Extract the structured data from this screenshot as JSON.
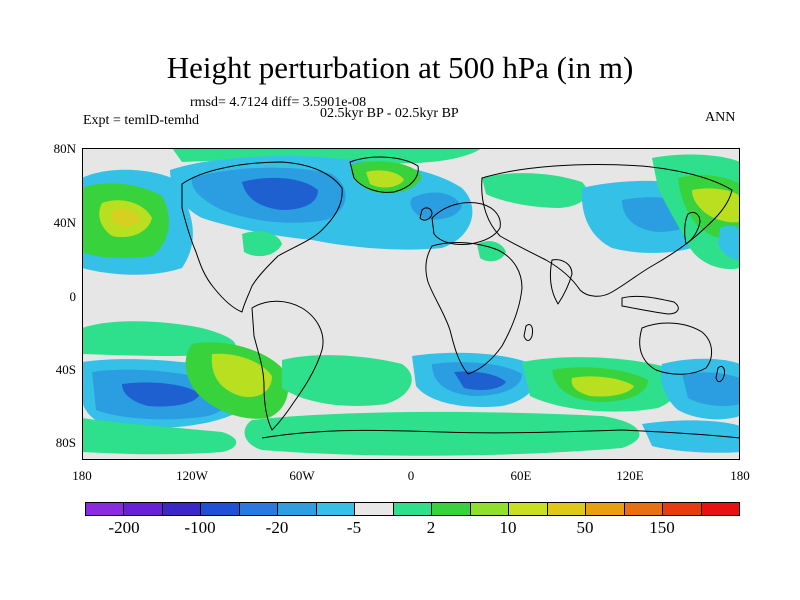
{
  "title": "Height perturbation at 500 hPa (in m)",
  "stats": "rmsd= 4.7124 diff= 3.5901e-08",
  "left_label": "Expt = temlD-temhd",
  "center_label": "02.5kyr BP - 02.5kyr BP",
  "right_label": "ANN",
  "y_ticks": [
    "80N",
    "40N",
    "0",
    "40S",
    "80S"
  ],
  "x_ticks": [
    "180",
    "120W",
    "60W",
    "0",
    "60E",
    "120E",
    "180"
  ],
  "colorbar": {
    "colors": [
      "#8a2be2",
      "#6a1fd8",
      "#3c28c8",
      "#1e50d8",
      "#2a78e0",
      "#2e9ee0",
      "#35c0e8",
      "#e8e8e8",
      "#2ee08c",
      "#38d23c",
      "#8ee02a",
      "#c8e020",
      "#e0c818",
      "#e8a010",
      "#e87010",
      "#e83c10",
      "#e81010"
    ],
    "labels": [
      "-200",
      "-100",
      "-20",
      "-5",
      "2",
      "10",
      "50",
      "150"
    ]
  },
  "map_colors": {
    "neutral": "#e6e6e6",
    "lb1": "#35c0e8",
    "lb2": "#2a9ee0",
    "db": "#1e60d0",
    "lg": "#2ee08c",
    "gr": "#38d23c",
    "yg": "#b8e020",
    "ye": "#d8d020",
    "coast": "#000000"
  }
}
